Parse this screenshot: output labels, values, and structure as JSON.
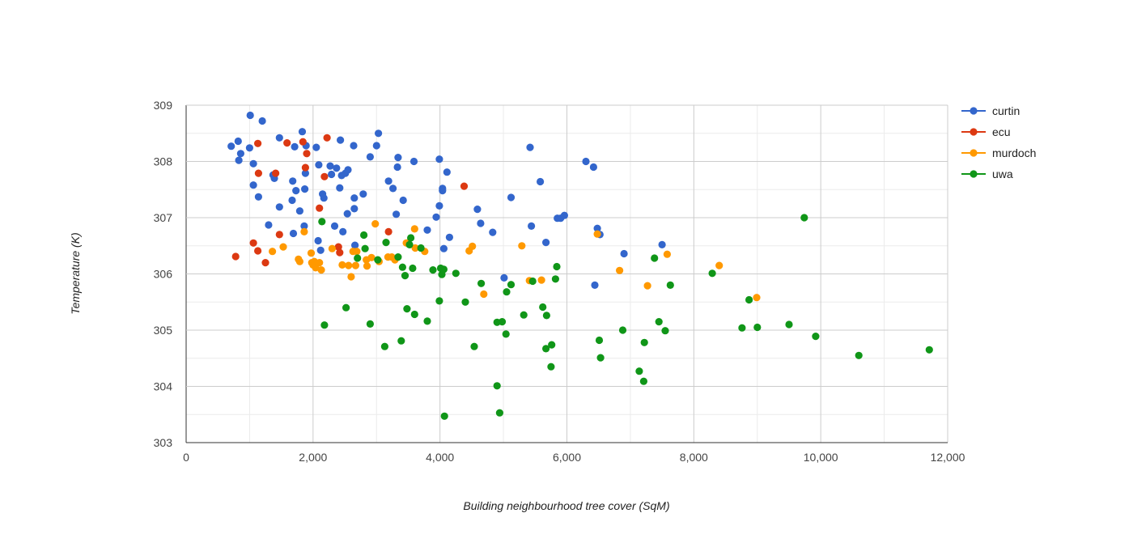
{
  "chart_data": {
    "type": "scatter",
    "title": "",
    "xlabel": "Building neighbourhood tree cover (SqM)",
    "ylabel": "Temperature (K)",
    "xlim": [
      0,
      12000
    ],
    "ylim": [
      303,
      309
    ],
    "x_ticks": [
      "0",
      "2,000",
      "4,000",
      "6,000",
      "8,000",
      "10,000",
      "12,000"
    ],
    "y_ticks": [
      "303",
      "304",
      "305",
      "306",
      "307",
      "308",
      "309"
    ],
    "x_tick_values": [
      0,
      2000,
      4000,
      6000,
      8000,
      10000,
      12000
    ],
    "y_tick_values": [
      303,
      304,
      305,
      306,
      307,
      308,
      309
    ],
    "grid": true,
    "legend_position": "right",
    "series": [
      {
        "name": "curtin",
        "color": "#3366cc",
        "points": [
          [
            710,
            308.27
          ],
          [
            820,
            308.36
          ],
          [
            860,
            308.14
          ],
          [
            830,
            308.02
          ],
          [
            1000,
            308.24
          ],
          [
            1010,
            308.82
          ],
          [
            1060,
            307.96
          ],
          [
            1060,
            307.58
          ],
          [
            1140,
            307.37
          ],
          [
            1200,
            308.72
          ],
          [
            1300,
            306.87
          ],
          [
            1370,
            307.76
          ],
          [
            1390,
            307.7
          ],
          [
            1470,
            308.42
          ],
          [
            1470,
            307.19
          ],
          [
            1670,
            307.31
          ],
          [
            1680,
            307.65
          ],
          [
            1690,
            306.72
          ],
          [
            1710,
            308.26
          ],
          [
            1730,
            307.48
          ],
          [
            1790,
            307.12
          ],
          [
            1830,
            308.53
          ],
          [
            1860,
            306.85
          ],
          [
            1870,
            307.51
          ],
          [
            1880,
            307.79
          ],
          [
            1890,
            308.28
          ],
          [
            2050,
            308.25
          ],
          [
            2080,
            306.59
          ],
          [
            2090,
            307.94
          ],
          [
            2120,
            306.42
          ],
          [
            2150,
            307.42
          ],
          [
            2170,
            307.35
          ],
          [
            2270,
            307.92
          ],
          [
            2290,
            307.77
          ],
          [
            2340,
            306.85
          ],
          [
            2370,
            307.88
          ],
          [
            2420,
            307.53
          ],
          [
            2430,
            308.38
          ],
          [
            2450,
            307.75
          ],
          [
            2470,
            306.75
          ],
          [
            2510,
            307.79
          ],
          [
            2540,
            307.07
          ],
          [
            2550,
            307.85
          ],
          [
            2640,
            308.28
          ],
          [
            2650,
            307.35
          ],
          [
            2650,
            307.16
          ],
          [
            2660,
            306.51
          ],
          [
            2790,
            307.42
          ],
          [
            2900,
            308.08
          ],
          [
            3000,
            308.28
          ],
          [
            3030,
            308.5
          ],
          [
            3190,
            307.65
          ],
          [
            3260,
            307.52
          ],
          [
            3310,
            307.06
          ],
          [
            3330,
            307.9
          ],
          [
            3340,
            308.07
          ],
          [
            3420,
            307.31
          ],
          [
            3590,
            308
          ],
          [
            3800,
            306.78
          ],
          [
            3940,
            307.01
          ],
          [
            3990,
            308.04
          ],
          [
            3990,
            307.21
          ],
          [
            4040,
            307.52
          ],
          [
            4040,
            307.48
          ],
          [
            4060,
            306.45
          ],
          [
            4110,
            307.81
          ],
          [
            4150,
            306.65
          ],
          [
            4590,
            307.15
          ],
          [
            4640,
            306.9
          ],
          [
            4830,
            306.74
          ],
          [
            5010,
            305.93
          ],
          [
            5120,
            307.36
          ],
          [
            5420,
            308.25
          ],
          [
            5440,
            306.85
          ],
          [
            5580,
            307.64
          ],
          [
            5670,
            306.56
          ],
          [
            5850,
            306.99
          ],
          [
            5900,
            306.99
          ],
          [
            5960,
            307.04
          ],
          [
            6300,
            308
          ],
          [
            6420,
            307.9
          ],
          [
            6440,
            305.8
          ],
          [
            6480,
            306.81
          ],
          [
            6520,
            306.7
          ],
          [
            6900,
            306.36
          ],
          [
            7500,
            306.52
          ]
        ]
      },
      {
        "name": "ecu",
        "color": "#dc3912",
        "points": [
          [
            780,
            306.31
          ],
          [
            1060,
            306.55
          ],
          [
            1130,
            308.32
          ],
          [
            1130,
            306.41
          ],
          [
            1140,
            307.79
          ],
          [
            1250,
            306.2
          ],
          [
            1410,
            307.79
          ],
          [
            1470,
            306.7
          ],
          [
            1590,
            308.33
          ],
          [
            1840,
            308.35
          ],
          [
            1880,
            307.89
          ],
          [
            1900,
            308.14
          ],
          [
            2100,
            307.17
          ],
          [
            2180,
            307.73
          ],
          [
            2220,
            308.42
          ],
          [
            2400,
            306.48
          ],
          [
            2420,
            306.38
          ],
          [
            3190,
            306.75
          ],
          [
            4380,
            307.56
          ]
        ]
      },
      {
        "name": "murdoch",
        "color": "#ff9900",
        "points": [
          [
            1360,
            306.4
          ],
          [
            1530,
            306.48
          ],
          [
            1770,
            306.26
          ],
          [
            1790,
            306.22
          ],
          [
            1860,
            306.75
          ],
          [
            1970,
            306.37
          ],
          [
            1980,
            306.2
          ],
          [
            2000,
            306.16
          ],
          [
            2020,
            306.22
          ],
          [
            2040,
            306.11
          ],
          [
            2100,
            306.2
          ],
          [
            2130,
            306.07
          ],
          [
            2300,
            306.45
          ],
          [
            2460,
            306.16
          ],
          [
            2560,
            306.15
          ],
          [
            2600,
            305.95
          ],
          [
            2630,
            306.4
          ],
          [
            2670,
            306.15
          ],
          [
            2690,
            306.4
          ],
          [
            2840,
            306.25
          ],
          [
            2850,
            306.14
          ],
          [
            2920,
            306.29
          ],
          [
            2980,
            306.89
          ],
          [
            3040,
            306.22
          ],
          [
            3180,
            306.3
          ],
          [
            3240,
            306.3
          ],
          [
            3290,
            306.25
          ],
          [
            3470,
            306.55
          ],
          [
            3600,
            306.8
          ],
          [
            3610,
            306.46
          ],
          [
            3760,
            306.4
          ],
          [
            4460,
            306.41
          ],
          [
            4510,
            306.49
          ],
          [
            4690,
            305.64
          ],
          [
            5290,
            306.5
          ],
          [
            5410,
            305.88
          ],
          [
            5600,
            305.89
          ],
          [
            6480,
            306.71
          ],
          [
            6830,
            306.06
          ],
          [
            7270,
            305.79
          ],
          [
            7580,
            306.35
          ],
          [
            8400,
            306.15
          ],
          [
            8990,
            305.58
          ]
        ]
      },
      {
        "name": "uwa",
        "color": "#109618",
        "points": [
          [
            2140,
            306.93
          ],
          [
            2180,
            305.09
          ],
          [
            2520,
            305.4
          ],
          [
            2700,
            306.28
          ],
          [
            2800,
            306.69
          ],
          [
            2820,
            306.45
          ],
          [
            2900,
            305.11
          ],
          [
            3020,
            306.25
          ],
          [
            3130,
            304.71
          ],
          [
            3150,
            306.56
          ],
          [
            3340,
            306.3
          ],
          [
            3390,
            304.81
          ],
          [
            3410,
            306.12
          ],
          [
            3450,
            305.97
          ],
          [
            3480,
            305.38
          ],
          [
            3520,
            306.52
          ],
          [
            3540,
            306.64
          ],
          [
            3570,
            306.1
          ],
          [
            3600,
            305.28
          ],
          [
            3700,
            306.46
          ],
          [
            3800,
            305.16
          ],
          [
            3890,
            306.07
          ],
          [
            3990,
            305.52
          ],
          [
            4010,
            306.1
          ],
          [
            4030,
            305.99
          ],
          [
            4060,
            306.08
          ],
          [
            4070,
            303.47
          ],
          [
            4250,
            306.01
          ],
          [
            4400,
            305.5
          ],
          [
            4540,
            304.71
          ],
          [
            4650,
            305.83
          ],
          [
            4900,
            304.01
          ],
          [
            4900,
            305.14
          ],
          [
            4940,
            303.53
          ],
          [
            4980,
            305.15
          ],
          [
            5040,
            304.93
          ],
          [
            5050,
            305.68
          ],
          [
            5120,
            305.81
          ],
          [
            5320,
            305.27
          ],
          [
            5460,
            305.87
          ],
          [
            5620,
            305.41
          ],
          [
            5670,
            304.67
          ],
          [
            5680,
            305.26
          ],
          [
            5750,
            304.35
          ],
          [
            5760,
            304.74
          ],
          [
            5820,
            305.91
          ],
          [
            5840,
            306.13
          ],
          [
            6510,
            304.82
          ],
          [
            6530,
            304.51
          ],
          [
            6880,
            305
          ],
          [
            7140,
            304.27
          ],
          [
            7210,
            304.09
          ],
          [
            7220,
            304.78
          ],
          [
            7380,
            306.28
          ],
          [
            7450,
            305.15
          ],
          [
            7550,
            304.99
          ],
          [
            7630,
            305.8
          ],
          [
            8290,
            306.01
          ],
          [
            8760,
            305.04
          ],
          [
            8870,
            305.54
          ],
          [
            9000,
            305.05
          ],
          [
            9500,
            305.1
          ],
          [
            9740,
            307
          ],
          [
            9920,
            304.89
          ],
          [
            10600,
            304.55
          ],
          [
            11710,
            304.65
          ]
        ]
      }
    ]
  }
}
